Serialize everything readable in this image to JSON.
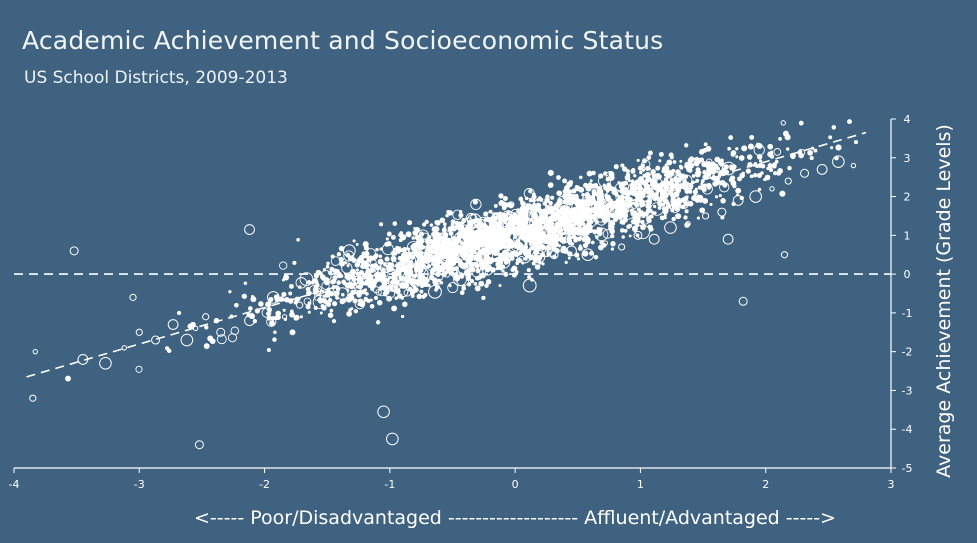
{
  "chart_data": {
    "type": "scatter",
    "title": "Academic Achievement and Socioeconomic Status",
    "subtitle": "US School Districts, 2009-2013",
    "xlabel": "<----- Poor/Disadvantaged ------------------- Affluent/Advantaged ----->",
    "ylabel": "Average Achievement (Grade Levels)",
    "xlim": [
      -4,
      3
    ],
    "ylim": [
      -5,
      4
    ],
    "x_ticks": [
      -4,
      -3,
      -2,
      -1,
      0,
      1,
      2,
      3
    ],
    "y_ticks": [
      -5,
      -4,
      -3,
      -2,
      -1,
      0,
      1,
      2,
      3,
      4
    ],
    "x_tick_labels": [
      "-4",
      "-3",
      "-2",
      "-1",
      "0",
      "1",
      "2",
      "3"
    ],
    "y_tick_labels": [
      "-5",
      "-4",
      "-3",
      "-2",
      "-1",
      "0",
      "1",
      "2",
      "3",
      "4"
    ],
    "grid": false,
    "legend": "none",
    "reference_line": {
      "y": 0,
      "style": "dashed"
    },
    "trend_line": {
      "x": [
        -3.9,
        2.8
      ],
      "y": [
        -2.65,
        3.65
      ],
      "style": "dashed"
    },
    "point_color": "#ffffff",
    "background_color": "#3f6280",
    "series": [
      {
        "points_note_free": true,
        "x": [
          -3.83,
          -3.85,
          -3.52,
          -3.45,
          -3.27,
          -3.12,
          -3.0,
          -2.87,
          -2.73,
          -2.62,
          -2.55,
          -2.47,
          -2.35,
          -2.12,
          -1.93,
          -1.84,
          -1.72,
          -1.61,
          -1.52,
          -1.38,
          -1.25,
          -1.11,
          -0.98,
          -0.86,
          -0.74,
          -0.61,
          -0.48,
          -0.35,
          -0.22,
          -0.09,
          0.05,
          0.18,
          0.31,
          0.45,
          0.58,
          0.72,
          0.85,
          0.98,
          1.11,
          1.24,
          1.38,
          1.52,
          1.65,
          1.78,
          1.92,
          2.05,
          2.18,
          2.31,
          2.45,
          2.58,
          2.7,
          -3.05,
          -2.52,
          -2.12,
          -1.05,
          2.14,
          2.15,
          1.82,
          1.7,
          -0.98
        ],
        "y": [
          -2.0,
          -3.2,
          0.6,
          -2.2,
          -2.3,
          -1.9,
          -1.5,
          -1.7,
          -1.3,
          -1.7,
          -1.4,
          -1.1,
          -1.5,
          -1.2,
          -0.6,
          -1.1,
          -0.8,
          -0.4,
          -0.6,
          -0.5,
          -0.3,
          -0.4,
          -0.2,
          -0.1,
          0.0,
          -0.2,
          0.1,
          0.2,
          0.1,
          0.3,
          0.4,
          0.3,
          0.5,
          0.6,
          0.5,
          0.8,
          0.7,
          1.0,
          0.9,
          1.2,
          1.3,
          1.5,
          1.6,
          1.9,
          2.0,
          2.2,
          2.4,
          2.6,
          2.7,
          2.9,
          2.8,
          -0.6,
          -4.4,
          1.15,
          -3.55,
          3.9,
          0.5,
          -0.7,
          0.9,
          -4.25
        ]
      }
    ]
  }
}
